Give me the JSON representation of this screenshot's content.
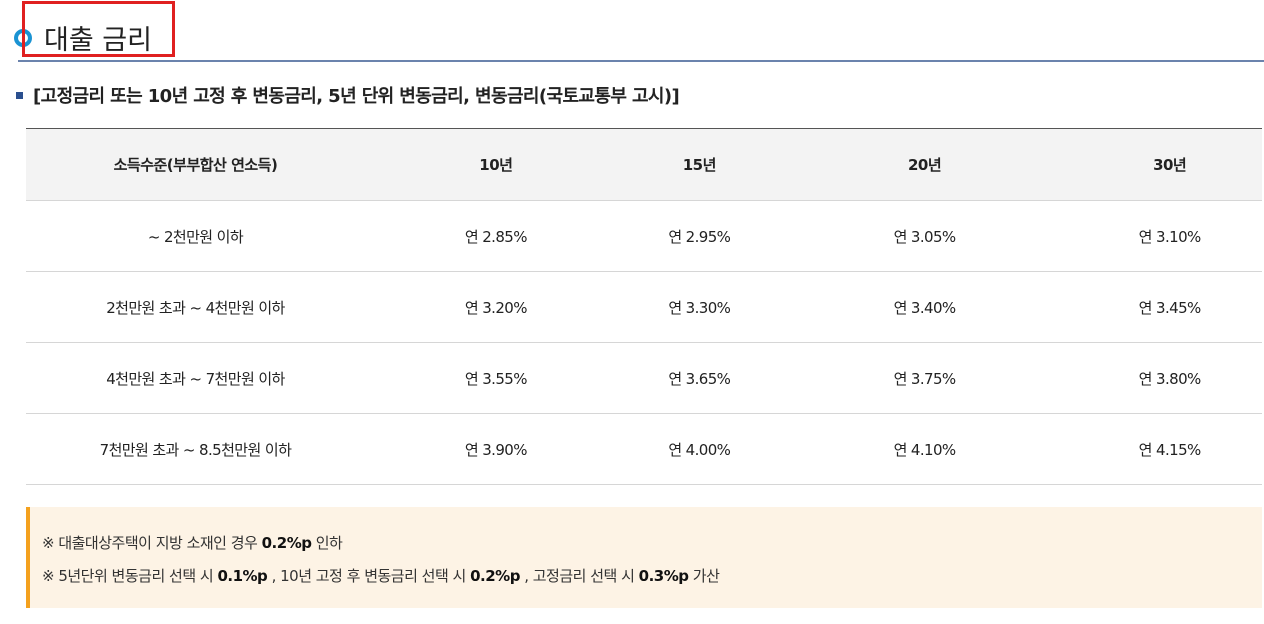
{
  "section": {
    "title": "대출 금리",
    "subtitle": "[고정금리 또는 10년 고정 후 변동금리, 5년 단위 변동금리, 변동금리(국토교통부 고시)]"
  },
  "table": {
    "headers": [
      "소득수준(부부합산 연소득)",
      "10년",
      "15년",
      "20년",
      "30년"
    ],
    "rows": [
      [
        "~ 2천만원 이하",
        "연 2.85%",
        "연 2.95%",
        "연 3.05%",
        "연 3.10%"
      ],
      [
        "2천만원 초과 ~ 4천만원 이하",
        "연 3.20%",
        "연 3.30%",
        "연 3.40%",
        "연 3.45%"
      ],
      [
        "4천만원 초과 ~ 7천만원 이하",
        "연 3.55%",
        "연 3.65%",
        "연 3.75%",
        "연 3.80%"
      ],
      [
        "7천만원 초과 ~ 8.5천만원 이하",
        "연 3.90%",
        "연 4.00%",
        "연 4.10%",
        "연 4.15%"
      ]
    ]
  },
  "notes": {
    "line1": {
      "prefix": "※ 대출대상주택이 지방 소재인 경우 ",
      "bold": "0.2%p",
      "suffix": " 인하"
    },
    "line2": {
      "part1": "※ 5년단위 변동금리 선택 시 ",
      "bold1": "0.1%p",
      "part2": " , 10년 고정 후 변동금리 선택 시 ",
      "bold2": "0.2%p",
      "part3": " , 고정금리 선택 시 ",
      "bold3": "0.3%p",
      "part4": " 가산"
    }
  },
  "colors": {
    "title_bullet": "#1a93d3",
    "highlight_box": "#e02020",
    "header_rule": "#6b83ad",
    "note_bar": "#f4a11e",
    "note_bg": "#fdf3e5"
  },
  "icons": [
    "circle-bullet-icon",
    "square-bullet-icon"
  ]
}
